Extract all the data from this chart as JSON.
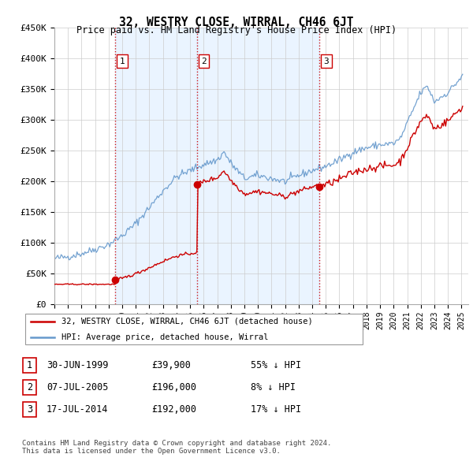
{
  "title": "32, WESTRY CLOSE, WIRRAL, CH46 6JT",
  "subtitle": "Price paid vs. HM Land Registry's House Price Index (HPI)",
  "ylim": [
    0,
    450000
  ],
  "yticks": [
    0,
    50000,
    100000,
    150000,
    200000,
    250000,
    300000,
    350000,
    400000,
    450000
  ],
  "ytick_labels": [
    "£0",
    "£50K",
    "£100K",
    "£150K",
    "£200K",
    "£250K",
    "£300K",
    "£350K",
    "£400K",
    "£450K"
  ],
  "sale_color": "#cc0000",
  "hpi_color": "#6699cc",
  "shade_color": "#ddeeff",
  "sale_dates": [
    1999.5,
    2005.52,
    2014.54
  ],
  "sale_prices": [
    39900,
    196000,
    192000
  ],
  "sale_labels": [
    "1",
    "2",
    "3"
  ],
  "legend_sale": "32, WESTRY CLOSE, WIRRAL, CH46 6JT (detached house)",
  "legend_hpi": "HPI: Average price, detached house, Wirral",
  "table_rows": [
    [
      "1",
      "30-JUN-1999",
      "£39,900",
      "55% ↓ HPI"
    ],
    [
      "2",
      "07-JUL-2005",
      "£196,000",
      "8% ↓ HPI"
    ],
    [
      "3",
      "17-JUL-2014",
      "£192,000",
      "17% ↓ HPI"
    ]
  ],
  "footnote": "Contains HM Land Registry data © Crown copyright and database right 2024.\nThis data is licensed under the Open Government Licence v3.0.",
  "vline_color": "#cc0000",
  "grid_color": "#cccccc",
  "background_color": "#ffffff",
  "xlim_start": 1995.0,
  "xlim_end": 2025.5
}
